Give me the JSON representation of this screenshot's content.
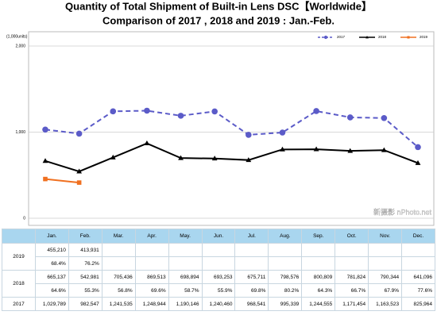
{
  "chart_data": {
    "type": "line",
    "title": "Quantity of Total Shipment of Built-in Lens DSC【Worldwide】",
    "subtitle": "Comparison of 2017 , 2018 and 2019 : Jan.-Feb.",
    "y_unit": "(1,000units)",
    "ylim": [
      0,
      2000
    ],
    "yticks": [
      0,
      {
        "value": 1000,
        "label": "1,000"
      },
      {
        "value": 2000,
        "label": "2,000"
      }
    ],
    "grid": true,
    "legend": "top-right",
    "watermark": "新摄影 nPhoto.net",
    "series": [
      {
        "name": "2017",
        "color": "#5b5bc8",
        "dash": true,
        "marker": "circle",
        "values": [
          1029.789,
          982.547,
          1241.535,
          1248.944,
          1190.146,
          1240.46,
          968.541,
          995.339,
          1244.555,
          1171.454,
          1163.523,
          825.964
        ]
      },
      {
        "name": "2018",
        "color": "#000000",
        "dash": false,
        "marker": "triangle",
        "values": [
          665.137,
          542.981,
          705.436,
          869.513,
          698.894,
          693.253,
          675.711,
          798.576,
          800.809,
          781.824,
          790.344,
          641.096
        ]
      },
      {
        "name": "2019",
        "color": "#f07020",
        "dash": false,
        "marker": "square",
        "values": [
          455.21,
          413.931,
          null,
          null,
          null,
          null,
          null,
          null,
          null,
          null,
          null,
          null
        ]
      }
    ]
  },
  "table": {
    "months": [
      "Jan.",
      "Feb.",
      "Mar.",
      "Apr.",
      "May.",
      "Jun.",
      "Jul.",
      "Aug.",
      "Sep.",
      "Oct.",
      "Nov.",
      "Dec."
    ],
    "rows": [
      {
        "year": "2019",
        "values": [
          "455,210",
          "413,931"
        ],
        "shares": [
          "68.4%",
          "76.2%"
        ]
      },
      {
        "year": "2018",
        "values": [
          "665,137",
          "542,981",
          "705,436",
          "869,513",
          "698,894",
          "693,253",
          "675,711",
          "798,576",
          "800,809",
          "781,824",
          "790,344",
          "641,096"
        ],
        "shares": [
          "64.6%",
          "55.3%",
          "56.8%",
          "69.6%",
          "58.7%",
          "55.9%",
          "69.8%",
          "80.2%",
          "64.3%",
          "66.7%",
          "67.9%",
          "77.6%"
        ]
      },
      {
        "year": "2017",
        "values": [
          "1,029,789",
          "982,547",
          "1,241,535",
          "1,248,944",
          "1,190,146",
          "1,240,460",
          "968,541",
          "995,339",
          "1,244,555",
          "1,171,454",
          "1,163,523",
          "825,964"
        ]
      }
    ]
  }
}
